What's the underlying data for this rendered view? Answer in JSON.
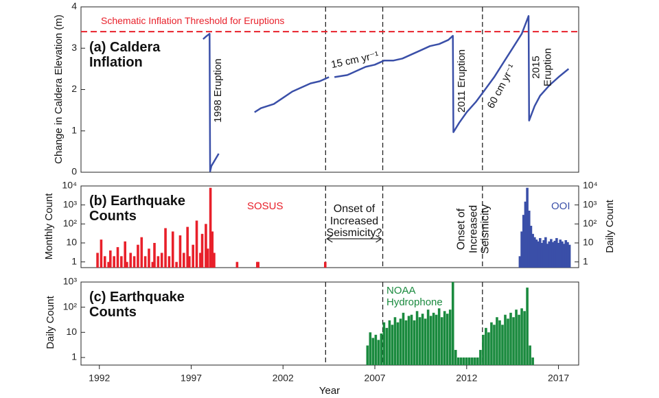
{
  "chart_data": [
    {
      "type": "line",
      "title": "(a) Caldera Inflation",
      "ylabel": "Change in Caldera Elevation (m)",
      "xlim": [
        1991,
        2018.1
      ],
      "ylim": [
        0,
        4
      ],
      "yticks": [
        0,
        1,
        2,
        3,
        4
      ],
      "vlines": [
        2004.32,
        2007.43,
        2012.86
      ],
      "threshold": {
        "text": "Schematic Inflation Threshold for Eruptions",
        "value": 3.4,
        "color": "#e8202a"
      },
      "annotations": [
        "1998 Eruption",
        "2011 Eruption",
        "2015 Eruption",
        "15 cm yr⁻¹",
        "60 cm yr⁻¹"
      ],
      "series": [
        {
          "color": "#3a4fa8",
          "x": [
            1997.65,
            1997.8,
            1998.0,
            1998.03,
            1998.1,
            1998.3,
            1998.5,
            null,
            2000.45,
            2000.8,
            2001.5,
            2002.0,
            2002.5,
            2003.0,
            2003.5,
            2004.0,
            2004.5,
            null,
            2004.8,
            2005.5,
            2006.0,
            2006.5,
            2007.0,
            2007.5,
            2008.0,
            2008.5,
            2009.0,
            2009.5,
            2010.0,
            2010.5,
            2011.0,
            2011.25,
            2011.28,
            2011.6,
            2012.0,
            2012.5,
            2013.0,
            2013.5,
            2014.0,
            2014.5,
            2015.0,
            2015.37,
            2015.4,
            2015.7,
            2016.0,
            2016.5,
            2017.0,
            2017.55
          ],
          "values": [
            3.22,
            3.28,
            3.35,
            0.02,
            0.15,
            0.3,
            0.45,
            null,
            1.45,
            1.55,
            1.65,
            1.8,
            1.95,
            2.05,
            2.15,
            2.2,
            2.3,
            null,
            2.3,
            2.35,
            2.45,
            2.55,
            2.6,
            2.7,
            2.7,
            2.75,
            2.85,
            2.95,
            3.05,
            3.1,
            3.2,
            3.3,
            0.97,
            1.2,
            1.45,
            1.7,
            2.0,
            2.3,
            2.65,
            3.0,
            3.35,
            3.78,
            1.25,
            1.6,
            1.85,
            2.1,
            2.3,
            2.5
          ]
        }
      ]
    },
    {
      "type": "bar",
      "title": "(b) Earthquake Counts",
      "ylabel": "Monthly Count",
      "y2label": "Daily Count",
      "xlim": [
        1991,
        2018.1
      ],
      "log_y": true,
      "ylim": [
        0.5,
        10000
      ],
      "yticks": [
        1,
        10,
        {
          "value": 100,
          "label": "10²"
        },
        {
          "value": 1000,
          "label": "10³"
        },
        {
          "value": 10000,
          "label": "10⁴"
        }
      ],
      "y2lim": [
        0.5,
        10000
      ],
      "y2ticks": [
        1,
        10,
        {
          "value": 100,
          "label": "10²"
        },
        {
          "value": 1000,
          "label": "10³"
        },
        {
          "value": 10000,
          "label": "10⁴"
        }
      ],
      "vlines": [
        2004.32,
        2007.43,
        2012.86
      ],
      "annotations": [
        "Onset of Increased Seismicity?",
        "Onset of Increased Seismicity"
      ],
      "series": [
        {
          "name": "SOSUS",
          "color": "#e8202a",
          "x": [
            1991.9,
            1992.1,
            1992.3,
            1992.5,
            1992.6,
            1992.8,
            1993.0,
            1993.2,
            1993.4,
            1993.5,
            1993.7,
            1993.9,
            1994.1,
            1994.3,
            1994.5,
            1994.7,
            1994.9,
            1995.0,
            1995.2,
            1995.4,
            1995.6,
            1995.8,
            1996.0,
            1996.2,
            1996.4,
            1996.6,
            1996.8,
            1996.9,
            1997.1,
            1997.3,
            1997.5,
            1997.6,
            1997.8,
            1997.9,
            1998.05,
            1998.15,
            1998.25,
            1999.5,
            2000.6,
            2000.65,
            2004.3
          ],
          "values": [
            3,
            15,
            2,
            1,
            4,
            2,
            6,
            2,
            12,
            1,
            3,
            2,
            8,
            20,
            2,
            5,
            1,
            10,
            2,
            3,
            60,
            2,
            40,
            1,
            25,
            3,
            70,
            2,
            8,
            150,
            3,
            30,
            100,
            5,
            8000,
            40,
            3,
            1,
            1,
            1,
            1
          ]
        },
        {
          "name": "OOI",
          "color": "#3a4fa8",
          "axis": "y2",
          "x": [
            2014.9,
            2015.0,
            2015.1,
            2015.2,
            2015.3,
            2015.4,
            2015.5,
            2015.6,
            2015.7,
            2015.8,
            2015.9,
            2016.0,
            2016.1,
            2016.2,
            2016.3,
            2016.4,
            2016.5,
            2016.6,
            2016.7,
            2016.8,
            2016.9,
            2017.0,
            2017.1,
            2017.2,
            2017.3,
            2017.4,
            2017.5,
            2017.6
          ],
          "values": [
            2,
            40,
            300,
            1500,
            8000,
            500,
            80,
            30,
            20,
            15,
            12,
            18,
            10,
            14,
            20,
            9,
            12,
            16,
            11,
            13,
            18,
            10,
            15,
            12,
            9,
            14,
            11,
            8
          ]
        }
      ]
    },
    {
      "type": "bar",
      "title": "(c) Earthquake Counts",
      "ylabel": "Daily Count",
      "xlabel": "Year",
      "xlim": [
        1991,
        2018.1
      ],
      "xticks": [
        1992,
        1997,
        2002,
        2007,
        2012,
        2017
      ],
      "log_y": true,
      "ylim": [
        0.5,
        1000
      ],
      "yticks": [
        1,
        10,
        {
          "value": 100,
          "label": "10²"
        },
        {
          "value": 1000,
          "label": "10³"
        }
      ],
      "vlines": [
        2004.32,
        2007.43,
        2012.86
      ],
      "series": [
        {
          "name": "NOAA Hydrophone",
          "color": "#1a8a3e",
          "x": [
            2006.6,
            2006.75,
            2006.9,
            2007.05,
            2007.2,
            2007.35,
            2007.5,
            2007.65,
            2007.8,
            2007.95,
            2008.1,
            2008.25,
            2008.4,
            2008.55,
            2008.7,
            2008.85,
            2009.0,
            2009.15,
            2009.3,
            2009.45,
            2009.6,
            2009.75,
            2009.9,
            2010.05,
            2010.2,
            2010.35,
            2010.5,
            2010.65,
            2010.8,
            2010.95,
            2011.1,
            2011.25,
            2011.4,
            2011.55,
            2011.7,
            2011.85,
            2012.0,
            2012.15,
            2012.3,
            2012.45,
            2012.6,
            2012.75,
            2012.9,
            2013.05,
            2013.2,
            2013.35,
            2013.5,
            2013.65,
            2013.8,
            2013.95,
            2014.1,
            2014.25,
            2014.4,
            2014.55,
            2014.7,
            2014.85,
            2015.0,
            2015.15,
            2015.3,
            2015.45,
            2015.6
          ],
          "values": [
            3,
            10,
            6,
            8,
            5,
            9,
            25,
            15,
            30,
            20,
            40,
            25,
            35,
            60,
            30,
            45,
            50,
            30,
            70,
            40,
            55,
            35,
            80,
            45,
            60,
            50,
            90,
            40,
            70,
            55,
            80,
            1000,
            2,
            1,
            1,
            1,
            1,
            1,
            1,
            1,
            1,
            2,
            8,
            15,
            10,
            25,
            20,
            40,
            30,
            20,
            50,
            35,
            60,
            40,
            80,
            50,
            90,
            70,
            600,
            3,
            1
          ]
        }
      ]
    }
  ]
}
